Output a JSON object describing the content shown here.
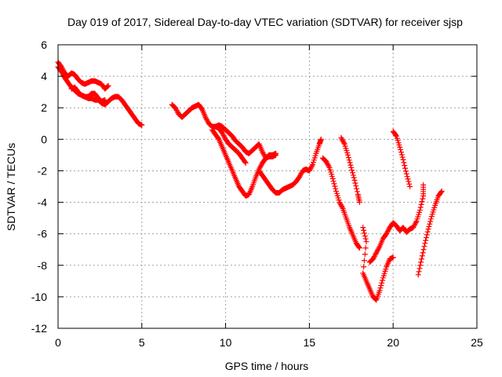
{
  "chart_data": {
    "type": "scatter",
    "title": "Day 019 of 2017, Sidereal Day-to-day VTEC variation (SDTVAR) for receiver sjsp",
    "xlabel": "GPS time / hours",
    "ylabel": "SDTVAR / TECUs",
    "xlim": [
      0,
      25
    ],
    "ylim": [
      -12,
      6
    ],
    "xticks": [
      0,
      5,
      10,
      15,
      20,
      25
    ],
    "yticks": [
      -12,
      -10,
      -8,
      -6,
      -4,
      -2,
      0,
      2,
      4,
      6
    ],
    "grid": true,
    "legend": "none",
    "marker": "+",
    "color": "#ff0000",
    "series": [
      {
        "points": [
          [
            0,
            4.9
          ],
          [
            0.2,
            4.6
          ],
          [
            0.4,
            4.2
          ],
          [
            0.6,
            4.0
          ],
          [
            0.8,
            4.2
          ],
          [
            1.0,
            4.1
          ],
          [
            1.2,
            3.8
          ],
          [
            1.4,
            3.6
          ],
          [
            1.6,
            3.5
          ],
          [
            1.8,
            3.6
          ],
          [
            2.0,
            3.7
          ],
          [
            2.2,
            3.7
          ],
          [
            2.4,
            3.6
          ],
          [
            2.6,
            3.5
          ],
          [
            2.8,
            3.2
          ],
          [
            3.0,
            3.4
          ]
        ]
      },
      {
        "points": [
          [
            0,
            4.6
          ],
          [
            0.2,
            4.3
          ],
          [
            0.4,
            3.9
          ],
          [
            0.6,
            3.6
          ],
          [
            0.8,
            3.3
          ],
          [
            1.0,
            3.1
          ],
          [
            1.2,
            2.9
          ],
          [
            1.4,
            2.8
          ],
          [
            1.6,
            2.7
          ],
          [
            1.8,
            2.6
          ],
          [
            2.0,
            2.6
          ],
          [
            2.2,
            2.5
          ],
          [
            2.4,
            2.5
          ],
          [
            2.6,
            2.3
          ],
          [
            2.8,
            2.2
          ],
          [
            3.0,
            2.4
          ],
          [
            3.2,
            2.6
          ],
          [
            3.4,
            2.7
          ],
          [
            3.6,
            2.7
          ],
          [
            3.8,
            2.5
          ],
          [
            4.0,
            2.2
          ],
          [
            4.2,
            1.9
          ],
          [
            4.4,
            1.6
          ],
          [
            4.6,
            1.3
          ],
          [
            4.8,
            1.0
          ],
          [
            5.0,
            0.9
          ]
        ]
      },
      {
        "points": [
          [
            0.8,
            3.2
          ],
          [
            1.0,
            3.3
          ],
          [
            1.2,
            3.0
          ],
          [
            1.4,
            2.8
          ],
          [
            1.6,
            2.7
          ],
          [
            1.8,
            2.7
          ],
          [
            2.0,
            2.9
          ],
          [
            2.2,
            2.9
          ],
          [
            2.4,
            2.6
          ],
          [
            2.6,
            2.4
          ],
          [
            2.8,
            2.5
          ]
        ]
      },
      {
        "points": [
          [
            6.8,
            2.2
          ],
          [
            7.0,
            2.0
          ],
          [
            7.2,
            1.6
          ],
          [
            7.4,
            1.4
          ],
          [
            7.6,
            1.6
          ],
          [
            7.8,
            1.8
          ],
          [
            8.0,
            2.0
          ],
          [
            8.2,
            2.1
          ],
          [
            8.4,
            2.2
          ],
          [
            8.6,
            1.9
          ],
          [
            8.8,
            1.4
          ],
          [
            9.0,
            1.0
          ],
          [
            9.2,
            0.8
          ],
          [
            9.4,
            0.8
          ],
          [
            9.6,
            0.9
          ],
          [
            9.8,
            0.8
          ],
          [
            10.0,
            0.6
          ],
          [
            10.2,
            0.4
          ],
          [
            10.4,
            0.2
          ],
          [
            10.6,
            -0.1
          ],
          [
            10.8,
            -0.3
          ],
          [
            11.0,
            -0.5
          ],
          [
            11.2,
            -0.8
          ],
          [
            11.4,
            -0.9
          ],
          [
            11.6,
            -0.7
          ],
          [
            11.8,
            -0.5
          ],
          [
            12.0,
            -0.3
          ],
          [
            12.2,
            -0.8
          ],
          [
            12.4,
            -1.2
          ],
          [
            12.6,
            -1.0
          ],
          [
            12.8,
            -1.0
          ],
          [
            13.0,
            -0.9
          ]
        ]
      },
      {
        "points": [
          [
            9.2,
            0.6
          ],
          [
            9.4,
            0.3
          ],
          [
            9.6,
            0.0
          ],
          [
            9.8,
            -0.5
          ],
          [
            10.0,
            -1.0
          ],
          [
            10.2,
            -1.5
          ],
          [
            10.4,
            -2.0
          ],
          [
            10.6,
            -2.5
          ],
          [
            10.8,
            -3.0
          ],
          [
            11.0,
            -3.3
          ],
          [
            11.2,
            -3.6
          ],
          [
            11.4,
            -3.5
          ],
          [
            11.6,
            -3.0
          ],
          [
            11.8,
            -2.4
          ],
          [
            12.0,
            -1.9
          ],
          [
            12.2,
            -1.5
          ],
          [
            12.4,
            -1.2
          ],
          [
            12.6,
            -1.1
          ],
          [
            12.8,
            -1.1
          ],
          [
            13.0,
            -1.0
          ]
        ]
      },
      {
        "points": [
          [
            9.4,
            0.8
          ],
          [
            9.6,
            0.7
          ],
          [
            9.8,
            0.4
          ],
          [
            10.0,
            0.0
          ],
          [
            10.2,
            -0.3
          ],
          [
            10.4,
            -0.5
          ],
          [
            10.6,
            -0.7
          ],
          [
            10.8,
            -0.9
          ],
          [
            11.0,
            -1.2
          ],
          [
            11.2,
            -1.5
          ]
        ]
      },
      {
        "points": [
          [
            12.0,
            -2.0
          ],
          [
            12.2,
            -2.3
          ],
          [
            12.4,
            -2.6
          ],
          [
            12.6,
            -2.9
          ],
          [
            12.8,
            -3.2
          ],
          [
            13.0,
            -3.4
          ],
          [
            13.2,
            -3.4
          ],
          [
            13.4,
            -3.2
          ],
          [
            13.6,
            -3.1
          ],
          [
            13.8,
            -3.0
          ],
          [
            14.0,
            -2.9
          ],
          [
            14.2,
            -2.7
          ],
          [
            14.4,
            -2.4
          ],
          [
            14.6,
            -2.0
          ],
          [
            14.8,
            -1.9
          ],
          [
            15.0,
            -2.0
          ],
          [
            15.2,
            -1.6
          ],
          [
            15.4,
            -0.9
          ],
          [
            15.6,
            -0.3
          ],
          [
            15.7,
            0.0
          ]
        ]
      },
      {
        "points": [
          [
            15.8,
            -1.2
          ],
          [
            16.0,
            -1.4
          ],
          [
            16.2,
            -1.8
          ],
          [
            16.4,
            -2.5
          ],
          [
            16.6,
            -3.3
          ],
          [
            16.8,
            -4.0
          ],
          [
            17.0,
            -4.4
          ],
          [
            17.2,
            -5.0
          ],
          [
            17.4,
            -5.6
          ],
          [
            17.6,
            -6.1
          ],
          [
            17.8,
            -6.6
          ],
          [
            18.0,
            -6.9
          ]
        ]
      },
      {
        "points": [
          [
            16.9,
            0.1
          ],
          [
            17.1,
            -0.3
          ],
          [
            17.3,
            -1.0
          ],
          [
            17.5,
            -1.8
          ],
          [
            17.7,
            -2.6
          ],
          [
            17.9,
            -3.5
          ],
          [
            18.0,
            -4.0
          ]
        ]
      },
      {
        "points": [
          [
            18.2,
            -5.6
          ],
          [
            18.4,
            -6.5
          ],
          [
            18.2,
            -8.5
          ],
          [
            18.4,
            -9.0
          ],
          [
            18.6,
            -9.5
          ],
          [
            18.8,
            -10.0
          ],
          [
            19.0,
            -10.2
          ],
          [
            19.2,
            -9.6
          ],
          [
            19.4,
            -8.8
          ],
          [
            19.6,
            -8.1
          ],
          [
            19.8,
            -7.6
          ],
          [
            20.0,
            -7.5
          ]
        ]
      },
      {
        "points": [
          [
            18.6,
            -7.8
          ],
          [
            18.8,
            -7.6
          ],
          [
            19.0,
            -7.2
          ],
          [
            19.2,
            -6.8
          ],
          [
            19.4,
            -6.3
          ],
          [
            19.6,
            -6.0
          ],
          [
            19.8,
            -5.6
          ],
          [
            20.0,
            -5.3
          ],
          [
            20.2,
            -5.5
          ],
          [
            20.4,
            -5.8
          ],
          [
            20.6,
            -5.6
          ],
          [
            20.8,
            -5.9
          ],
          [
            21.0,
            -5.7
          ],
          [
            21.2,
            -5.6
          ],
          [
            21.4,
            -5.2
          ],
          [
            21.6,
            -4.5
          ],
          [
            21.8,
            -3.6
          ],
          [
            21.8,
            -2.9
          ]
        ]
      },
      {
        "points": [
          [
            20.0,
            0.5
          ],
          [
            20.2,
            0.2
          ],
          [
            20.4,
            -0.5
          ],
          [
            20.6,
            -1.3
          ],
          [
            20.8,
            -2.2
          ],
          [
            21.0,
            -3.0
          ]
        ]
      },
      {
        "points": [
          [
            21.5,
            -8.6
          ],
          [
            21.7,
            -7.6
          ],
          [
            21.9,
            -6.6
          ],
          [
            22.1,
            -5.7
          ],
          [
            22.3,
            -4.9
          ],
          [
            22.5,
            -4.2
          ],
          [
            22.7,
            -3.6
          ],
          [
            22.9,
            -3.3
          ]
        ]
      }
    ]
  }
}
